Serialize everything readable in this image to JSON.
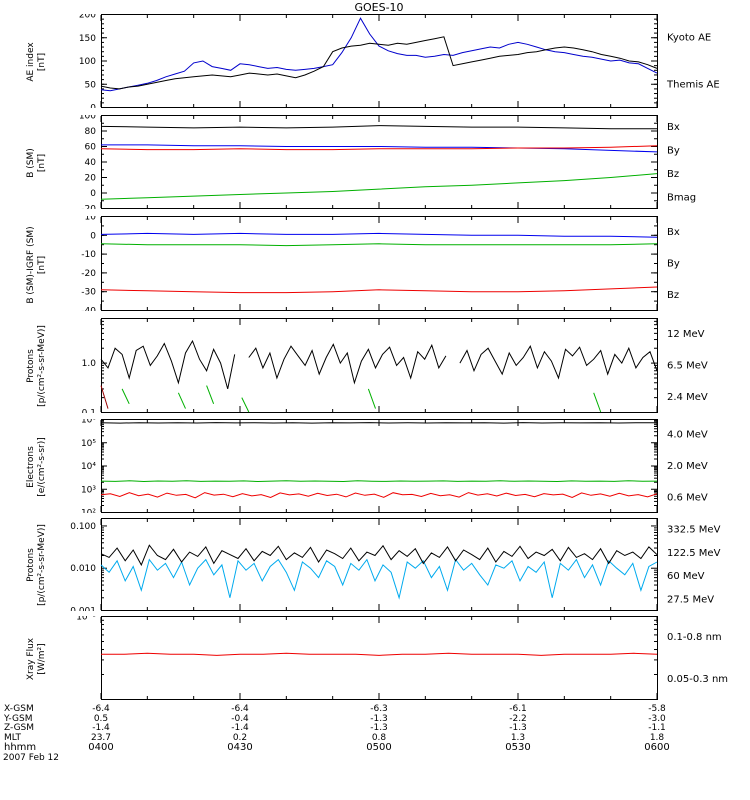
{
  "title": "GOES-10",
  "footer": {
    "date": "2007 Feb 12",
    "rows": [
      {
        "label": "X-GSM",
        "values": [
          "-6.4",
          "-6.4",
          "-6.3",
          "-6.1",
          "-5.8"
        ]
      },
      {
        "label": "Y-GSM",
        "values": [
          "0.5",
          "-0.4",
          "-1.3",
          "-2.2",
          "-3.0"
        ]
      },
      {
        "label": "Z-GSM",
        "values": [
          "-1.4",
          "-1.4",
          "-1.3",
          "-1.3",
          "-1.1"
        ]
      },
      {
        "label": "MLT",
        "values": [
          "23.7",
          "0.2",
          "0.8",
          "1.3",
          "1.8"
        ]
      },
      {
        "label": "hhmm",
        "values": [
          "0400",
          "0430",
          "0500",
          "0530",
          "0600"
        ]
      }
    ]
  },
  "chart_data": [
    {
      "type": "line",
      "ylabel": "AE index",
      "ylabel_units": "[nT]",
      "yscale": "linear",
      "ylim": [
        0,
        200
      ],
      "yticks": [
        0,
        50,
        100,
        150,
        200
      ],
      "ytick_labels": [
        "0",
        "50",
        "100",
        "150",
        "200"
      ],
      "yminor": 10,
      "x_ticks": [
        "0400",
        "0430",
        "0500",
        "0530",
        "0600"
      ],
      "series": [
        {
          "name": "Kyoto AE",
          "color": "#0000cc",
          "label_color": "#0000ff",
          "values": [
            38,
            36,
            40,
            44,
            48,
            52,
            58,
            66,
            72,
            78,
            96,
            100,
            88,
            84,
            80,
            94,
            92,
            88,
            84,
            86,
            82,
            80,
            82,
            84,
            88,
            92,
            118,
            150,
            192,
            158,
            132,
            122,
            116,
            112,
            112,
            108,
            110,
            114,
            112,
            118,
            122,
            126,
            130,
            128,
            136,
            140,
            136,
            130,
            124,
            120,
            118,
            114,
            110,
            108,
            104,
            100,
            102,
            96,
            94,
            84,
            74
          ]
        },
        {
          "name": "Themis AE",
          "color": "#000000",
          "label_color": "#000000",
          "values": [
            46,
            42,
            40,
            44,
            46,
            50,
            54,
            58,
            62,
            64,
            66,
            68,
            70,
            68,
            66,
            70,
            74,
            72,
            70,
            72,
            68,
            64,
            70,
            78,
            88,
            120,
            128,
            132,
            134,
            138,
            136,
            134,
            138,
            136,
            140,
            144,
            148,
            152,
            90,
            94,
            98,
            102,
            106,
            110,
            112,
            114,
            118,
            120,
            124,
            128,
            130,
            128,
            124,
            120,
            114,
            110,
            106,
            100,
            98,
            92,
            84
          ]
        }
      ]
    },
    {
      "type": "line",
      "ylabel": "B (SM)",
      "ylabel_units": "[nT]",
      "yscale": "linear",
      "ylim": [
        -20,
        100
      ],
      "yticks": [
        -20,
        0,
        20,
        40,
        60,
        80,
        100
      ],
      "ytick_labels": [
        "-20",
        "0",
        "20",
        "40",
        "60",
        "80",
        "100"
      ],
      "yminor": 10,
      "series": [
        {
          "name": "Bx",
          "color": "#0000ee",
          "values": [
            62,
            62,
            61,
            61,
            60,
            60,
            60,
            59,
            59,
            58,
            57,
            55,
            53
          ]
        },
        {
          "name": "By",
          "color": "#00b000",
          "values": [
            -8,
            -6,
            -4,
            -2,
            0,
            2,
            5,
            8,
            10,
            13,
            16,
            20,
            25
          ]
        },
        {
          "name": "Bz",
          "color": "#ee0000",
          "values": [
            57,
            56,
            56,
            57,
            56,
            56,
            57,
            57,
            57,
            58,
            58,
            59,
            61
          ]
        },
        {
          "name": "Bmag",
          "color": "#000000",
          "values": [
            86,
            85,
            84,
            85,
            84,
            85,
            87,
            86,
            85,
            85,
            84,
            83,
            83
          ]
        }
      ]
    },
    {
      "type": "line",
      "ylabel": "B (SM)-IGRF (SM)",
      "ylabel_units": "[nT]",
      "yscale": "linear",
      "ylim": [
        -40,
        10
      ],
      "yticks": [
        -40,
        -30,
        -20,
        -10,
        0,
        10
      ],
      "ytick_labels": [
        "-40",
        "-30",
        "-20",
        "-10",
        "0",
        "10"
      ],
      "yminor": 5,
      "series": [
        {
          "name": "Bx",
          "color": "#0000ee",
          "values": [
            0.5,
            1,
            0.5,
            1,
            0.5,
            0.5,
            1,
            0.5,
            0,
            0,
            -0.5,
            -0.5,
            -1
          ]
        },
        {
          "name": "By",
          "color": "#00b000",
          "values": [
            -4.5,
            -5,
            -5,
            -5,
            -5.5,
            -5,
            -4.5,
            -5,
            -5,
            -5,
            -5,
            -5,
            -4.5
          ]
        },
        {
          "name": "Bz",
          "color": "#ee0000",
          "values": [
            -29,
            -29.5,
            -30,
            -30.5,
            -30.5,
            -30,
            -29,
            -29.5,
            -30,
            -30,
            -29.5,
            -28.5,
            -27.5
          ]
        }
      ]
    },
    {
      "type": "line",
      "ylabel": "Protons",
      "ylabel_units": "[p/(cm²-s-sr-MeV)]",
      "yscale": "log",
      "ylim": [
        0.1,
        8
      ],
      "yticks": [
        1.0,
        0.1
      ],
      "ytick_labels": [
        "1.0",
        "0.1"
      ],
      "series": [
        {
          "name": "12 MeV",
          "color": "#990000",
          "values": [
            0.35,
            0.12,
            null,
            null,
            null,
            null,
            null,
            null,
            null,
            null,
            null,
            null,
            null,
            null,
            null,
            null,
            null,
            null,
            null,
            null,
            null,
            null,
            null,
            0.1,
            null,
            null,
            null,
            null,
            0.12,
            null,
            null,
            null,
            null,
            null,
            null,
            0.1,
            null,
            null,
            null,
            null,
            null,
            null,
            null,
            null,
            null,
            0.12,
            null,
            null,
            null,
            null,
            null,
            null,
            0.1,
            null,
            null,
            null,
            null,
            null,
            null,
            null,
            null,
            null,
            null,
            0.12,
            null,
            null,
            null,
            null,
            null,
            null,
            null,
            0.1,
            null,
            null,
            null,
            null,
            null,
            null,
            null,
            null
          ]
        },
        {
          "name": "6.5 MeV",
          "color": "#00b000",
          "values": [
            0.12,
            null,
            null,
            0.3,
            0.15,
            null,
            null,
            null,
            0.2,
            null,
            null,
            0.25,
            0.12,
            null,
            null,
            0.35,
            0.15,
            null,
            null,
            null,
            0.2,
            0.1,
            null,
            null,
            0.3,
            null,
            null,
            0.15,
            null,
            null,
            0.25,
            null,
            0.12,
            null,
            null,
            0.2,
            null,
            null,
            0.3,
            0.12,
            null,
            null,
            0.18,
            null,
            null,
            0.25,
            null,
            0.1,
            null,
            null,
            0.2,
            null,
            null,
            0.15,
            null,
            null,
            0.22,
            null,
            null,
            0.12,
            null,
            0.28,
            null,
            null,
            0.15,
            null,
            null,
            0.2,
            null,
            null,
            0.25,
            0.1,
            null,
            null,
            0.18,
            null,
            null,
            0.3,
            null,
            0.12
          ]
        },
        {
          "name": "2.4 MeV",
          "color": "#000000",
          "values": [
            1.2,
            0.8,
            2.0,
            1.5,
            0.5,
            1.8,
            2.2,
            0.9,
            1.4,
            2.5,
            1.1,
            0.4,
            1.6,
            2.8,
            1.2,
            0.7,
            1.9,
            1.0,
            0.3,
            1.5,
            null,
            1.3,
            2.0,
            0.8,
            1.6,
            0.5,
            1.2,
            2.2,
            1.4,
            0.9,
            1.8,
            0.6,
            1.3,
            2.4,
            1.0,
            1.6,
            0.4,
            1.1,
            1.9,
            0.8,
            1.5,
            2.1,
            0.9,
            1.3,
            0.5,
            1.7,
            1.2,
            2.3,
            0.8,
            1.4,
            null,
            1.0,
            1.8,
            0.7,
            1.5,
            2.0,
            1.1,
            0.6,
            1.6,
            0.9,
            1.3,
            2.2,
            0.8,
            1.7,
            1.1,
            0.5,
            1.9,
            1.4,
            2.1,
            0.9,
            1.2,
            1.8,
            0.6,
            1.5,
            1.0,
            2.0,
            0.8,
            1.3,
            1.7,
            0.7
          ]
        }
      ]
    },
    {
      "type": "line",
      "ylabel": "Electrons",
      "ylabel_units": "[e/(cm²-s-sr)]",
      "yscale": "log",
      "ylim": [
        100.0,
        1000000.0
      ],
      "yticks": [
        100.0,
        1000.0,
        10000.0,
        100000.0,
        1000000.0
      ],
      "ytick_labels": [
        "10²",
        "10³",
        "10⁴",
        "10⁵",
        "10⁶"
      ],
      "series": [
        {
          "name": "4.0 MeV",
          "color": "#ee0000",
          "values": [
            580,
            640,
            490,
            710,
            530,
            620,
            460,
            680,
            550,
            600,
            430,
            720,
            560,
            610,
            480,
            650,
            520,
            590,
            440,
            700,
            570,
            630,
            500,
            670,
            540,
            610,
            470,
            690,
            550,
            620,
            450,
            710,
            580,
            600,
            490,
            660,
            530,
            580,
            460,
            720,
            560,
            640,
            510,
            680,
            540,
            600,
            480,
            650,
            570,
            620,
            440,
            700,
            550,
            630,
            500,
            670,
            520,
            590,
            470,
            640
          ]
        },
        {
          "name": "2.0 MeV",
          "color": "#00b000",
          "values": [
            2250,
            2180,
            2300,
            2150,
            2270,
            2200,
            2320,
            2170,
            2240,
            2210,
            2280,
            2160,
            2250,
            2300,
            2190,
            2260,
            2220,
            2150,
            2310,
            2230,
            2180,
            2270,
            2200,
            2240,
            2290,
            2170,
            2250,
            2210,
            2320,
            2190,
            2260,
            2230,
            2150,
            2280,
            2200,
            2240,
            2170,
            2300,
            2220,
            2250
          ]
        },
        {
          "name": "0.6 MeV",
          "color": "#000000",
          "values": [
            720000,
            700000,
            730000,
            710000,
            725000,
            705000,
            735000,
            715000,
            720000,
            710000,
            730000,
            700000,
            725000,
            715000,
            735000,
            705000,
            720000,
            710000,
            730000,
            715000,
            725000,
            700000,
            735000,
            710000,
            720000,
            715000,
            730000,
            705000,
            725000,
            718000
          ]
        }
      ]
    },
    {
      "type": "line",
      "ylabel": "Protons",
      "ylabel_units": "[p/(cm²-s-sr-MeV)]",
      "yscale": "log",
      "ylim": [
        0.001,
        0.15
      ],
      "yticks": [
        0.1,
        0.01,
        0.001
      ],
      "ytick_labels": [
        "0.100",
        "0.010",
        "0.001"
      ],
      "series": [
        {
          "name": "332.5 MeV",
          "color": "#ee0000",
          "values": []
        },
        {
          "name": "122.5 MeV",
          "color": "#e0e000",
          "values": []
        },
        {
          "name": "60 MeV",
          "color": "#00aaee",
          "values": [
            0.012,
            0.008,
            0.015,
            0.005,
            0.011,
            0.003,
            0.016,
            0.009,
            0.013,
            0.006,
            0.014,
            0.004,
            0.01,
            0.016,
            0.007,
            0.012,
            0.002,
            0.015,
            0.009,
            0.013,
            0.005,
            0.011,
            0.016,
            0.008,
            0.003,
            0.014,
            0.01,
            0.006,
            0.015,
            0.011,
            0.004,
            0.013,
            0.009,
            0.016,
            0.005,
            0.012,
            0.008,
            0.002,
            0.014,
            0.01,
            0.015,
            0.006,
            0.011,
            0.003,
            0.016,
            0.009,
            0.013,
            0.007,
            0.004,
            0.012,
            0.01,
            0.015,
            0.005,
            0.011,
            0.008,
            0.014,
            0.002,
            0.013,
            0.009,
            0.016,
            0.006,
            0.012,
            0.004,
            0.015,
            0.01,
            0.007,
            0.013,
            0.003,
            0.011,
            0.014
          ]
        },
        {
          "name": "27.5 MeV",
          "color": "#000000",
          "values": [
            0.022,
            0.018,
            0.03,
            0.015,
            0.027,
            0.012,
            0.035,
            0.02,
            0.016,
            0.028,
            0.014,
            0.024,
            0.019,
            0.032,
            0.013,
            0.026,
            0.021,
            0.017,
            0.029,
            0.015,
            0.025,
            0.02,
            0.033,
            0.016,
            0.023,
            0.018,
            0.031,
            0.014,
            0.027,
            0.022,
            0.017,
            0.03,
            0.015,
            0.024,
            0.02,
            0.034,
            0.016,
            0.026,
            0.019,
            0.029,
            0.013,
            0.023,
            0.018,
            0.032,
            0.015,
            0.027,
            0.021,
            0.016,
            0.03,
            0.014,
            0.025,
            0.019,
            0.033,
            0.017,
            0.024,
            0.02,
            0.028,
            0.015,
            0.031,
            0.018,
            0.022,
            0.016,
            0.029,
            0.013,
            0.026,
            0.02,
            0.024,
            0.017,
            0.032,
            0.021
          ]
        }
      ]
    },
    {
      "type": "line",
      "ylabel": "Xray Flux",
      "ylabel_units": "[W/m²]",
      "yscale": "log",
      "ylim": [
        1e-09,
        1e-08
      ],
      "yticks": [
        1e-08
      ],
      "ytick_labels": [
        "10⁻⁸"
      ],
      "series": [
        {
          "name": "0.1-0.8 nm",
          "color": "#ee0000",
          "values": [
            3.5e-09,
            3.5e-09,
            3.6e-09,
            3.5e-09,
            3.5e-09,
            3.4e-09,
            3.5e-09,
            3.5e-09,
            3.6e-09,
            3.5e-09,
            3.5e-09,
            3.5e-09,
            3.4e-09,
            3.5e-09,
            3.5e-09,
            3.6e-09,
            3.5e-09,
            3.5e-09,
            3.5e-09,
            3.4e-09,
            3.5e-09,
            3.5e-09,
            3.5e-09,
            3.6e-09,
            3.5e-09
          ]
        },
        {
          "name": "0.05-0.3 nm",
          "color": "#0000ee",
          "values": []
        }
      ]
    }
  ]
}
